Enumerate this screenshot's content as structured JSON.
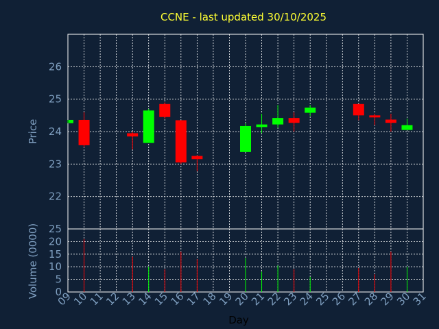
{
  "chart_data": {
    "type": "candlestick",
    "title": "CCNE - last updated 30/10/2025",
    "xlabel": "Day",
    "price_panel": {
      "ylabel": "Price",
      "ylim": [
        21,
        27
      ],
      "y_ticks": [
        22,
        23,
        24,
        25,
        26
      ],
      "grid": true
    },
    "volume_panel": {
      "ylabel": "Volume (0000)",
      "ylim": [
        0,
        25
      ],
      "y_ticks": [
        0,
        5,
        10,
        15,
        20,
        25
      ],
      "grid": true
    },
    "x_tick_labels": [
      "09",
      "10",
      "11",
      "12",
      "13",
      "14",
      "15",
      "16",
      "17",
      "18",
      "19",
      "20",
      "21",
      "22",
      "23",
      "24",
      "25",
      "26",
      "27",
      "28",
      "29",
      "30",
      "31"
    ],
    "up_color": "#00ff00",
    "down_color": "#ff0000",
    "candles": [
      {
        "day": "09",
        "open": 24.26,
        "high": 24.36,
        "low": 24.26,
        "close": 24.36,
        "volume": 0
      },
      {
        "day": "10",
        "open": 24.36,
        "high": 24.6,
        "low": 23.52,
        "close": 23.58,
        "volume": 21
      },
      {
        "day": "13",
        "open": 23.95,
        "high": 24.0,
        "low": 23.45,
        "close": 23.85,
        "volume": 14
      },
      {
        "day": "14",
        "open": 23.65,
        "high": 24.7,
        "low": 23.65,
        "close": 24.65,
        "volume": 10
      },
      {
        "day": "15",
        "open": 24.85,
        "high": 24.9,
        "low": 24.4,
        "close": 24.45,
        "volume": 9
      },
      {
        "day": "16",
        "open": 24.35,
        "high": 24.35,
        "low": 23.0,
        "close": 23.05,
        "volume": 16
      },
      {
        "day": "17",
        "open": 23.25,
        "high": 23.28,
        "low": 22.78,
        "close": 23.15,
        "volume": 13
      },
      {
        "day": "20",
        "open": 23.37,
        "high": 24.25,
        "low": 23.37,
        "close": 24.17,
        "volume": 13.5
      },
      {
        "day": "21",
        "open": 24.14,
        "high": 24.55,
        "low": 23.95,
        "close": 24.22,
        "volume": 8
      },
      {
        "day": "22",
        "open": 24.22,
        "high": 24.82,
        "low": 24.12,
        "close": 24.42,
        "volume": 10.5
      },
      {
        "day": "23",
        "open": 24.42,
        "high": 24.6,
        "low": 24.0,
        "close": 24.27,
        "volume": 9
      },
      {
        "day": "24",
        "open": 24.58,
        "high": 24.82,
        "low": 24.48,
        "close": 24.74,
        "volume": 6
      },
      {
        "day": "27",
        "open": 24.85,
        "high": 24.85,
        "low": 24.35,
        "close": 24.5,
        "volume": 9.5
      },
      {
        "day": "28",
        "open": 24.5,
        "high": 24.55,
        "low": 24.2,
        "close": 24.45,
        "volume": 7
      },
      {
        "day": "29",
        "open": 24.37,
        "high": 24.55,
        "low": 24.0,
        "close": 24.27,
        "volume": 16
      },
      {
        "day": "30",
        "open": 24.05,
        "high": 24.4,
        "low": 24.05,
        "close": 24.2,
        "volume": 10
      }
    ]
  }
}
